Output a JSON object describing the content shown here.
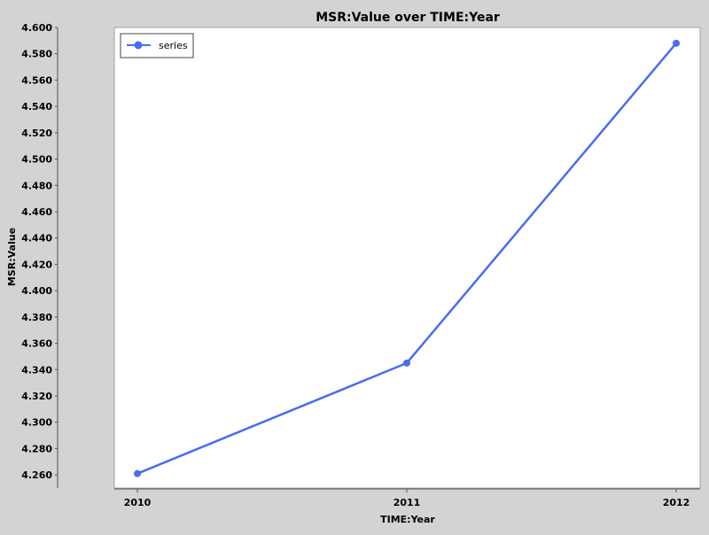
{
  "chart_data": {
    "type": "line",
    "title": "MSR:Value over TIME:Year",
    "xlabel": "TIME:Year",
    "ylabel": "MSR:Value",
    "categories": [
      "2010",
      "2011",
      "2012"
    ],
    "series": [
      {
        "name": "series",
        "values": [
          4.261,
          4.345,
          4.588
        ],
        "color": "#4a6cf0"
      }
    ],
    "ylim": [
      4.25,
      4.6
    ],
    "yticks": [
      "4.260",
      "4.280",
      "4.300",
      "4.320",
      "4.340",
      "4.360",
      "4.380",
      "4.400",
      "4.420",
      "4.440",
      "4.460",
      "4.480",
      "4.500",
      "4.520",
      "4.540",
      "4.560",
      "4.580",
      "4.600"
    ],
    "grid": false,
    "legend_position": "top-left"
  }
}
